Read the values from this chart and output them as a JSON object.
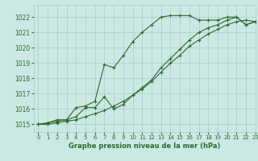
{
  "title": "Graphe pression niveau de la mer (hPa)",
  "bg_color": "#cce8e4",
  "grid_color": "#aaccc8",
  "line_color": "#2d6b2d",
  "xlim": [
    -0.5,
    23
  ],
  "ylim": [
    1014.5,
    1022.8
  ],
  "yticks": [
    1015,
    1016,
    1017,
    1018,
    1019,
    1020,
    1021,
    1022
  ],
  "xticks": [
    0,
    1,
    2,
    3,
    4,
    5,
    6,
    7,
    8,
    9,
    10,
    11,
    12,
    13,
    14,
    15,
    16,
    17,
    18,
    19,
    20,
    21,
    22,
    23
  ],
  "series1_x": [
    0,
    1,
    2,
    3,
    4,
    5,
    6,
    7,
    8,
    9,
    10,
    11,
    12,
    13,
    14,
    15,
    16,
    17,
    18,
    19,
    20,
    21,
    22,
    23
  ],
  "series1_y": [
    1015.0,
    1015.1,
    1015.3,
    1015.3,
    1016.1,
    1016.2,
    1016.5,
    1018.9,
    1018.7,
    1019.5,
    1020.4,
    1021.0,
    1021.5,
    1022.0,
    1022.1,
    1022.1,
    1022.1,
    1021.8,
    1021.8,
    1021.8,
    1022.0,
    1022.0,
    1021.5,
    1021.7
  ],
  "series2_x": [
    0,
    1,
    2,
    3,
    4,
    5,
    6,
    7,
    8,
    9,
    10,
    11,
    12,
    13,
    14,
    15,
    16,
    17,
    18,
    19,
    20,
    21,
    22,
    23
  ],
  "series2_y": [
    1015.0,
    1015.1,
    1015.2,
    1015.3,
    1015.5,
    1016.1,
    1016.1,
    1016.8,
    1016.0,
    1016.3,
    1016.9,
    1017.4,
    1017.9,
    1018.7,
    1019.3,
    1019.9,
    1020.5,
    1021.0,
    1021.3,
    1021.5,
    1021.8,
    1022.0,
    1021.5,
    1021.7
  ],
  "series3_x": [
    0,
    1,
    2,
    3,
    4,
    5,
    6,
    7,
    8,
    9,
    10,
    11,
    12,
    13,
    14,
    15,
    16,
    17,
    18,
    19,
    20,
    21,
    22,
    23
  ],
  "series3_y": [
    1015.0,
    1015.0,
    1015.1,
    1015.2,
    1015.3,
    1015.5,
    1015.7,
    1015.9,
    1016.2,
    1016.5,
    1016.9,
    1017.3,
    1017.8,
    1018.4,
    1019.0,
    1019.5,
    1020.1,
    1020.5,
    1020.9,
    1021.2,
    1021.5,
    1021.7,
    1021.8,
    1021.7
  ]
}
